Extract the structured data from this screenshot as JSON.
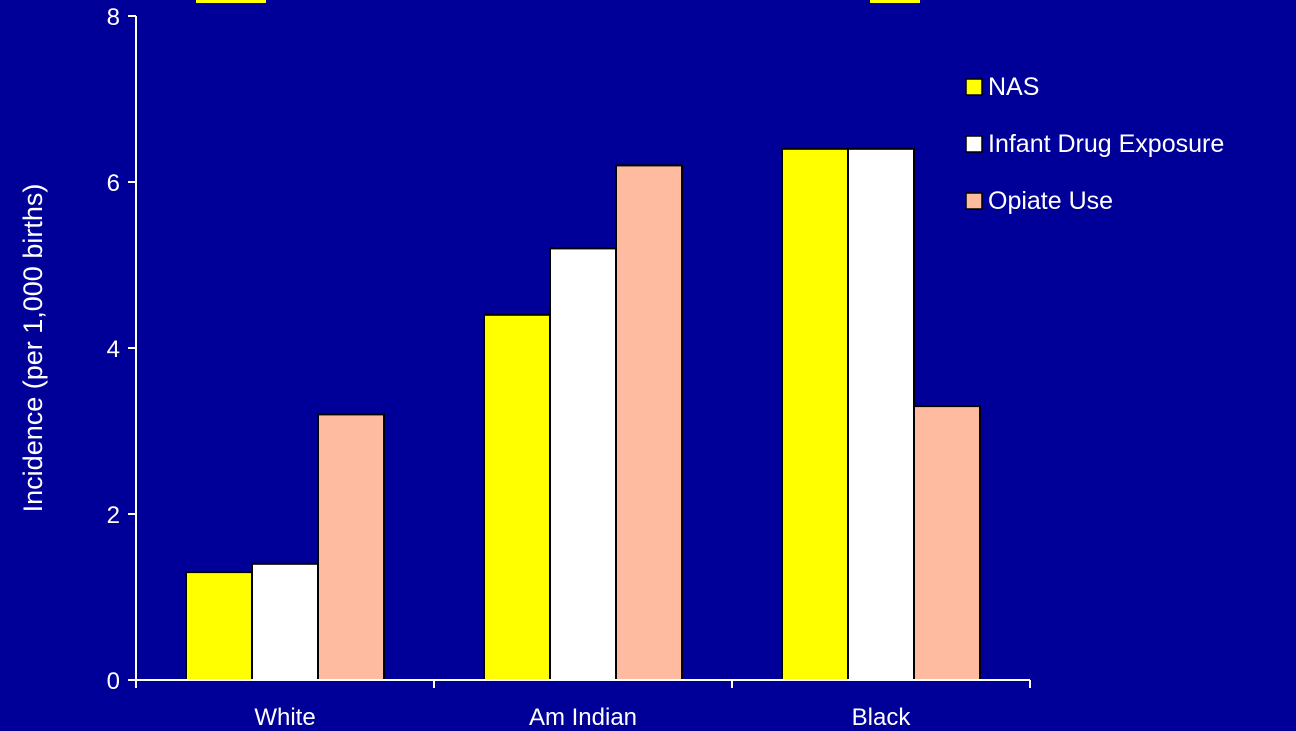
{
  "chart_data": {
    "type": "bar",
    "title": "",
    "xlabel": "",
    "ylabel": "Incidence (per 1,000 births)",
    "ylim": [
      0,
      8
    ],
    "yticks": [
      "0",
      "2",
      "4",
      "6",
      "8"
    ],
    "categories": [
      "White",
      "Am Indian",
      "Black"
    ],
    "series": [
      {
        "name": "NAS",
        "color": "#ffff00",
        "values": [
          1.3,
          4.4,
          6.4
        ]
      },
      {
        "name": "Infant Drug Exposure",
        "color": "#ffffff",
        "values": [
          1.4,
          5.2,
          6.4
        ]
      },
      {
        "name": "Opiate Use",
        "color": "#ffbba0",
        "values": [
          3.2,
          6.2,
          3.3
        ]
      }
    ],
    "legend_position": "top-right",
    "grid": false
  },
  "colors": {
    "background": "#000099",
    "axis": "#ffffff",
    "text": "#ffffff"
  }
}
